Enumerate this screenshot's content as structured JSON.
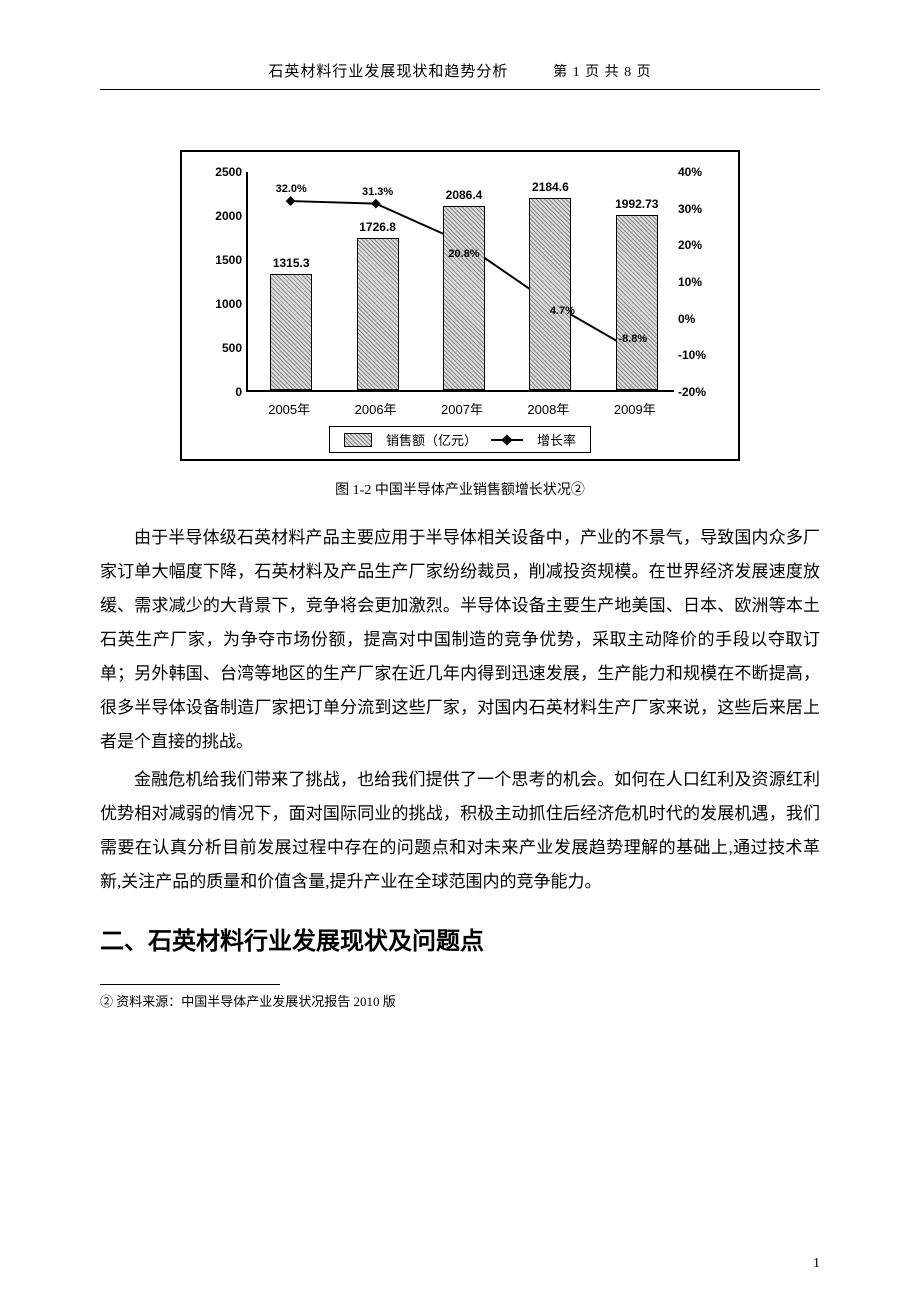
{
  "header": {
    "title": "石英材料行业发展现状和趋势分析",
    "page_label": "第 1 页 共 8 页"
  },
  "chart": {
    "type": "bar+line",
    "categories": [
      "2005年",
      "2006年",
      "2007年",
      "2008年",
      "2009年"
    ],
    "bar_values": [
      1315.3,
      1726.8,
      2086.4,
      2184.6,
      1992.73
    ],
    "rate_values_pct": [
      32.0,
      31.3,
      20.8,
      4.7,
      -8.8
    ],
    "rate_labels": [
      "32.0%",
      "31.3%",
      "20.8%",
      "4.7%",
      "-8.8%"
    ],
    "left_axis": {
      "min": 0,
      "max": 2500,
      "step": 500,
      "ticks": [
        "0",
        "500",
        "1000",
        "1500",
        "2000",
        "2500"
      ]
    },
    "right_axis": {
      "min": -20,
      "max": 40,
      "step": 10,
      "ticks": [
        "-20%",
        "-10%",
        "0%",
        "10%",
        "20%",
        "30%",
        "40%"
      ]
    },
    "bar_fill": "#bfbfbf",
    "bar_border": "#000000",
    "line_color": "#000000",
    "marker": "diamond",
    "marker_size": 7,
    "line_width": 2,
    "background": "#ffffff",
    "border_color": "#000000",
    "legend": {
      "bar": "销售额（亿元）",
      "line": "增长率"
    }
  },
  "caption": "图 1-2 中国半导体产业销售额增长状况②",
  "para1": "由于半导体级石英材料产品主要应用于半导体相关设备中，产业的不景气，导致国内众多厂家订单大幅度下降，石英材料及产品生产厂家纷纷裁员，削减投资规模。在世界经济发展速度放缓、需求减少的大背景下，竞争将会更加激烈。半导体设备主要生产地美国、日本、欧洲等本土石英生产厂家，为争夺市场份额，提高对中国制造的竞争优势，采取主动降价的手段以夺取订单；另外韩国、台湾等地区的生产厂家在近几年内得到迅速发展，生产能力和规模在不断提高，很多半导体设备制造厂家把订单分流到这些厂家，对国内石英材料生产厂家来说，这些后来居上者是个直接的挑战。",
  "para2": "金融危机给我们带来了挑战，也给我们提供了一个思考的机会。如何在人口红利及资源红利优势相对减弱的情况下，面对国际同业的挑战，积极主动抓住后经济危机时代的发展机遇，我们需要在认真分析目前发展过程中存在的问题点和对未来产业发展趋势理解的基础上,通过技术革新,关注产品的质量和价值含量,提升产业在全球范围内的竞争能力。",
  "h2": "二、石英材料行业发展现状及问题点",
  "footnote": "② 资料来源：中国半导体产业发展状况报告 2010 版",
  "page_number": "1"
}
